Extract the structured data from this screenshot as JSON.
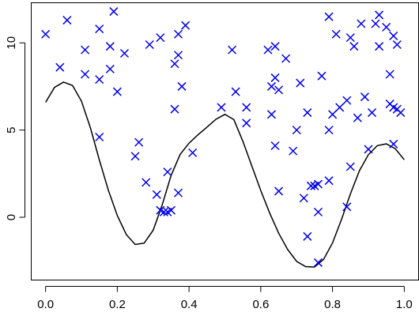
{
  "chart_data": {
    "type": "scatter",
    "title": "",
    "xlabel": "",
    "ylabel": "",
    "xlim": [
      -0.04,
      1.04
    ],
    "ylim": [
      -3.6,
      12.3
    ],
    "x_ticks": [
      0.0,
      0.2,
      0.4,
      0.6,
      0.8,
      1.0
    ],
    "x_tick_labels": [
      "0.0",
      "0.2",
      "0.4",
      "0.6",
      "0.8",
      "1.0"
    ],
    "y_ticks": [
      0,
      5,
      10
    ],
    "y_tick_labels": [
      "0",
      "5",
      "10"
    ],
    "grid": false,
    "legend": "none",
    "colors": {
      "points": "#0000ee",
      "curve": "#000000",
      "axes": "#000000"
    },
    "series": [
      {
        "type": "scatter",
        "marker": "x",
        "points": [
          [
            0.0,
            10.5
          ],
          [
            0.04,
            8.6
          ],
          [
            0.06,
            11.3
          ],
          [
            0.11,
            9.6
          ],
          [
            0.11,
            8.2
          ],
          [
            0.15,
            10.8
          ],
          [
            0.15,
            7.9
          ],
          [
            0.15,
            4.6
          ],
          [
            0.18,
            9.8
          ],
          [
            0.18,
            8.5
          ],
          [
            0.19,
            11.8
          ],
          [
            0.2,
            7.2
          ],
          [
            0.22,
            9.4
          ],
          [
            0.25,
            3.5
          ],
          [
            0.26,
            4.3
          ],
          [
            0.28,
            2.0
          ],
          [
            0.29,
            9.9
          ],
          [
            0.31,
            1.3
          ],
          [
            0.32,
            10.3
          ],
          [
            0.32,
            0.4
          ],
          [
            0.33,
            0.3
          ],
          [
            0.34,
            0.3
          ],
          [
            0.34,
            2.6
          ],
          [
            0.35,
            0.4
          ],
          [
            0.36,
            8.8
          ],
          [
            0.36,
            6.2
          ],
          [
            0.37,
            9.3
          ],
          [
            0.37,
            1.4
          ],
          [
            0.37,
            10.5
          ],
          [
            0.38,
            7.5
          ],
          [
            0.39,
            11.0
          ],
          [
            0.41,
            3.7
          ],
          [
            0.49,
            6.3
          ],
          [
            0.52,
            9.6
          ],
          [
            0.53,
            7.2
          ],
          [
            0.56,
            6.3
          ],
          [
            0.56,
            5.4
          ],
          [
            0.62,
            9.6
          ],
          [
            0.63,
            7.5
          ],
          [
            0.63,
            5.9
          ],
          [
            0.64,
            9.8
          ],
          [
            0.64,
            8.0
          ],
          [
            0.64,
            4.1
          ],
          [
            0.65,
            7.3
          ],
          [
            0.65,
            1.5
          ],
          [
            0.67,
            9.1
          ],
          [
            0.69,
            3.8
          ],
          [
            0.7,
            5.0
          ],
          [
            0.71,
            7.7
          ],
          [
            0.72,
            1.1
          ],
          [
            0.73,
            6.0
          ],
          [
            0.73,
            -1.1
          ],
          [
            0.74,
            1.8
          ],
          [
            0.75,
            1.8
          ],
          [
            0.76,
            0.3
          ],
          [
            0.76,
            1.9
          ],
          [
            0.76,
            -2.6
          ],
          [
            0.77,
            8.1
          ],
          [
            0.79,
            11.5
          ],
          [
            0.79,
            5.0
          ],
          [
            0.79,
            2.1
          ],
          [
            0.8,
            5.9
          ],
          [
            0.81,
            10.5
          ],
          [
            0.82,
            6.3
          ],
          [
            0.84,
            6.7
          ],
          [
            0.84,
            0.6
          ],
          [
            0.85,
            2.9
          ],
          [
            0.85,
            10.3
          ],
          [
            0.86,
            9.8
          ],
          [
            0.87,
            5.7
          ],
          [
            0.88,
            11.1
          ],
          [
            0.89,
            6.9
          ],
          [
            0.9,
            3.9
          ],
          [
            0.91,
            6.0
          ],
          [
            0.92,
            11.1
          ],
          [
            0.93,
            9.8
          ],
          [
            0.93,
            11.6
          ],
          [
            0.95,
            10.9
          ],
          [
            0.96,
            8.2
          ],
          [
            0.96,
            6.5
          ],
          [
            0.97,
            6.3
          ],
          [
            0.97,
            4.2
          ],
          [
            0.97,
            10.4
          ],
          [
            0.98,
            9.9
          ],
          [
            0.98,
            6.2
          ],
          [
            0.99,
            6.0
          ]
        ]
      },
      {
        "type": "line",
        "points": [
          [
            0.0,
            6.59
          ],
          [
            0.025,
            7.45
          ],
          [
            0.05,
            7.75
          ],
          [
            0.075,
            7.56
          ],
          [
            0.1,
            6.66
          ],
          [
            0.125,
            5.13
          ],
          [
            0.15,
            3.28
          ],
          [
            0.175,
            1.55
          ],
          [
            0.2,
            0.1
          ],
          [
            0.225,
            -0.99
          ],
          [
            0.25,
            -1.56
          ],
          [
            0.275,
            -1.48
          ],
          [
            0.3,
            -0.74
          ],
          [
            0.325,
            0.7
          ],
          [
            0.35,
            2.4
          ],
          [
            0.375,
            3.6
          ],
          [
            0.4,
            4.25
          ],
          [
            0.425,
            4.73
          ],
          [
            0.45,
            5.17
          ],
          [
            0.475,
            5.62
          ],
          [
            0.5,
            5.9
          ],
          [
            0.525,
            5.6
          ],
          [
            0.55,
            4.36
          ],
          [
            0.575,
            2.94
          ],
          [
            0.6,
            1.53
          ],
          [
            0.625,
            0.23
          ],
          [
            0.65,
            -0.92
          ],
          [
            0.675,
            -1.85
          ],
          [
            0.7,
            -2.53
          ],
          [
            0.725,
            -2.83
          ],
          [
            0.75,
            -2.85
          ],
          [
            0.775,
            -2.42
          ],
          [
            0.8,
            -1.47
          ],
          [
            0.825,
            -0.13
          ],
          [
            0.85,
            1.35
          ],
          [
            0.875,
            2.67
          ],
          [
            0.9,
            3.59
          ],
          [
            0.925,
            4.11
          ],
          [
            0.95,
            4.21
          ],
          [
            0.975,
            3.93
          ],
          [
            1.0,
            3.3
          ]
        ]
      }
    ]
  }
}
